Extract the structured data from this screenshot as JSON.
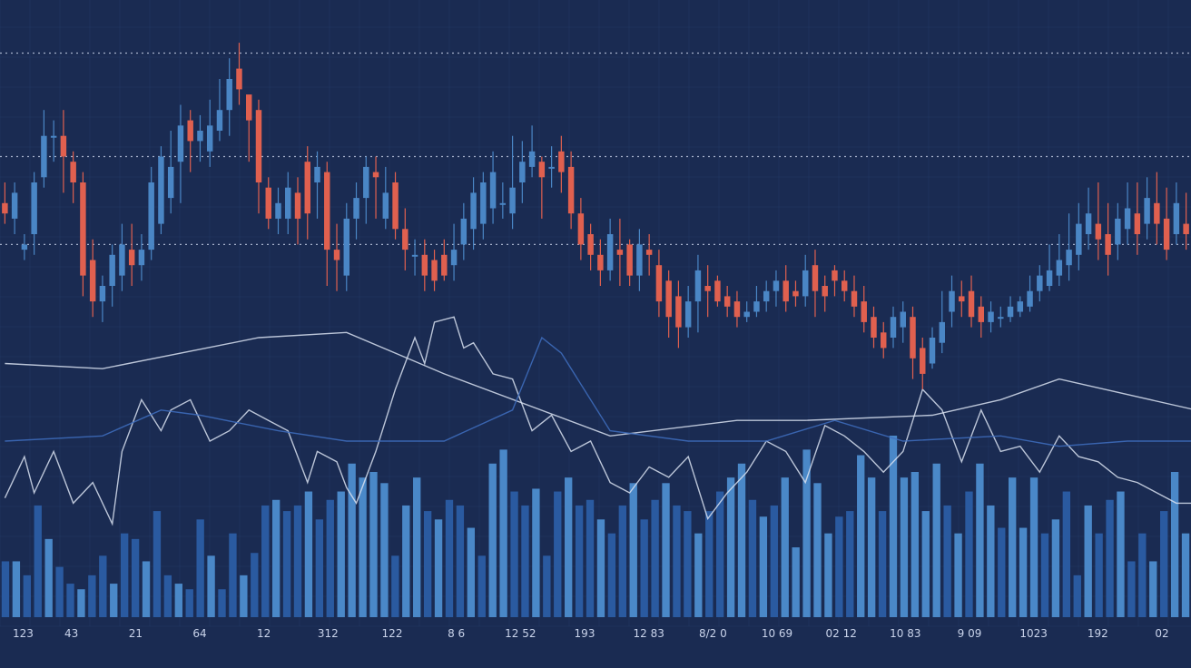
{
  "chart_data": {
    "type": "candlestick",
    "title": "",
    "xlabel": "",
    "ylabel": "",
    "grid": true,
    "legend": "none",
    "colors": {
      "background": "#1a2b52",
      "grid": "#26406e",
      "up": "#4a86c5",
      "down": "#e0604f",
      "volume": "#2a5aa0",
      "volume_light": "#4a88c8",
      "line_white": "#d8e0f0",
      "line_blue": "#3f6fc0"
    },
    "ylim": [
      0,
      100
    ],
    "x_ticks": [
      "123",
      "43",
      "21",
      "64",
      "12",
      "312",
      "122",
      "8 6",
      "12 52",
      "193",
      "12 83",
      "8/2 0",
      "10 69",
      "02 12",
      "10 83",
      "9 09",
      "1023",
      "192",
      "02"
    ],
    "reference_levels": [
      95,
      75,
      58
    ],
    "candles": [
      [
        66,
        64,
        70,
        62
      ],
      [
        63,
        68,
        70,
        60
      ],
      [
        57,
        58,
        60,
        55
      ],
      [
        60,
        70,
        72,
        56
      ],
      [
        71,
        79,
        84,
        69
      ],
      [
        79,
        79,
        82,
        74
      ],
      [
        79,
        75,
        84,
        68
      ],
      [
        74,
        70,
        76,
        66
      ],
      [
        70,
        52,
        72,
        48
      ],
      [
        55,
        47,
        59,
        44
      ],
      [
        47,
        50,
        52,
        43
      ],
      [
        50,
        56,
        58,
        46
      ],
      [
        52,
        58,
        62,
        49
      ],
      [
        57,
        54,
        62,
        50
      ],
      [
        54,
        57,
        60,
        51
      ],
      [
        57,
        70,
        73,
        55
      ],
      [
        62,
        75,
        77,
        60
      ],
      [
        67,
        73,
        80,
        64
      ],
      [
        74,
        81,
        85,
        66
      ],
      [
        82,
        78,
        84,
        72
      ],
      [
        78,
        80,
        83,
        74
      ],
      [
        76,
        81,
        86,
        73
      ],
      [
        80,
        84,
        90,
        78
      ],
      [
        84,
        90,
        94,
        79
      ],
      [
        92,
        88,
        97,
        85
      ],
      [
        87,
        82,
        85,
        74
      ],
      [
        84,
        70,
        86,
        64
      ],
      [
        69,
        63,
        71,
        61
      ],
      [
        63,
        66,
        69,
        60
      ],
      [
        63,
        69,
        72,
        60
      ],
      [
        68,
        63,
        71,
        58
      ],
      [
        74,
        64,
        77,
        59
      ],
      [
        70,
        73,
        76,
        63
      ],
      [
        72,
        57,
        74,
        50
      ],
      [
        57,
        55,
        62,
        49
      ],
      [
        52,
        63,
        66,
        49
      ],
      [
        63,
        67,
        70,
        59
      ],
      [
        67,
        73,
        75,
        62
      ],
      [
        72,
        71,
        75,
        63
      ],
      [
        63,
        68,
        73,
        61
      ],
      [
        70,
        61,
        72,
        59
      ],
      [
        61,
        57,
        65,
        53
      ],
      [
        56,
        56,
        59,
        52
      ],
      [
        56,
        52,
        59,
        49
      ],
      [
        55,
        51,
        57,
        49
      ],
      [
        56,
        52,
        59,
        51
      ],
      [
        54,
        57,
        62,
        51
      ],
      [
        58,
        63,
        66,
        55
      ],
      [
        61,
        68,
        71,
        57
      ],
      [
        62,
        70,
        72,
        59
      ],
      [
        65,
        72,
        76,
        62
      ],
      [
        66,
        66,
        70,
        63
      ],
      [
        64,
        69,
        79,
        61
      ],
      [
        70,
        74,
        78,
        66
      ],
      [
        73,
        76,
        81,
        71
      ],
      [
        74,
        71,
        75,
        63
      ],
      [
        73,
        73,
        77,
        69
      ],
      [
        76,
        72,
        79,
        68
      ],
      [
        73,
        64,
        76,
        61
      ],
      [
        64,
        58,
        67,
        55
      ],
      [
        60,
        56,
        62,
        53
      ],
      [
        56,
        53,
        59,
        50
      ],
      [
        53,
        60,
        63,
        51
      ],
      [
        57,
        56,
        63,
        50
      ],
      [
        58,
        52,
        59,
        50
      ],
      [
        52,
        58,
        61,
        49
      ],
      [
        57,
        56,
        60,
        52
      ],
      [
        54,
        47,
        57,
        44
      ],
      [
        51,
        44,
        53,
        40
      ],
      [
        48,
        42,
        51,
        38
      ],
      [
        42,
        47,
        50,
        40
      ],
      [
        47,
        53,
        56,
        41
      ],
      [
        50,
        49,
        54,
        44
      ],
      [
        51,
        47,
        52,
        46
      ],
      [
        48,
        46,
        50,
        44
      ],
      [
        47,
        44,
        49,
        42
      ],
      [
        44,
        45,
        47,
        43
      ],
      [
        45,
        47,
        50,
        44
      ],
      [
        47,
        49,
        51,
        45
      ],
      [
        49,
        51,
        53,
        46
      ],
      [
        51,
        47,
        54,
        45
      ],
      [
        49,
        48,
        51,
        46
      ],
      [
        48,
        53,
        56,
        46
      ],
      [
        54,
        49,
        57,
        44
      ],
      [
        50,
        48,
        52,
        45
      ],
      [
        53,
        51,
        54,
        48
      ],
      [
        51,
        49,
        53,
        47
      ],
      [
        49,
        46,
        52,
        44
      ],
      [
        47,
        43,
        50,
        41
      ],
      [
        44,
        40,
        46,
        38
      ],
      [
        41,
        38,
        43,
        36
      ],
      [
        40,
        44,
        46,
        38
      ],
      [
        42,
        45,
        47,
        39
      ],
      [
        44,
        36,
        46,
        32
      ],
      [
        38,
        33,
        40,
        30
      ],
      [
        35,
        40,
        42,
        34
      ],
      [
        39,
        43,
        49,
        37
      ],
      [
        45,
        49,
        52,
        42
      ],
      [
        48,
        47,
        51,
        44
      ],
      [
        49,
        44,
        52,
        42
      ],
      [
        46,
        43,
        48,
        40
      ],
      [
        43,
        45,
        47,
        41
      ],
      [
        44,
        44,
        46,
        42
      ],
      [
        44,
        46,
        48,
        43
      ],
      [
        45,
        47,
        48,
        44
      ],
      [
        46,
        49,
        52,
        45
      ],
      [
        49,
        52,
        54,
        47
      ],
      [
        50,
        53,
        58,
        49
      ],
      [
        52,
        55,
        60,
        50
      ],
      [
        54,
        57,
        64,
        51
      ],
      [
        56,
        62,
        66,
        53
      ],
      [
        60,
        64,
        69,
        57
      ],
      [
        62,
        59,
        70,
        55
      ],
      [
        60,
        56,
        66,
        52
      ],
      [
        58,
        63,
        66,
        55
      ],
      [
        61,
        65,
        70,
        58
      ],
      [
        64,
        60,
        70,
        56
      ],
      [
        62,
        67,
        71,
        59
      ],
      [
        66,
        62,
        72,
        58
      ],
      [
        63,
        57,
        69,
        55
      ],
      [
        60,
        66,
        70,
        58
      ],
      [
        62,
        60,
        68,
        57
      ]
    ],
    "volume": [
      20,
      20,
      15,
      40,
      28,
      18,
      12,
      10,
      15,
      22,
      12,
      30,
      28,
      20,
      38,
      15,
      12,
      10,
      35,
      22,
      10,
      30,
      15,
      23,
      40,
      42,
      38,
      40,
      45,
      35,
      42,
      45,
      55,
      50,
      52,
      48,
      22,
      40,
      50,
      38,
      35,
      42,
      40,
      32,
      22,
      55,
      60,
      45,
      40,
      46,
      22,
      45,
      50,
      40,
      42,
      35,
      30,
      40,
      48,
      35,
      42,
      48,
      40,
      38,
      30,
      38,
      45,
      50,
      55,
      42,
      36,
      40,
      50,
      25,
      60,
      48,
      30,
      36,
      38,
      58,
      50,
      38,
      65,
      50,
      52,
      38,
      55,
      40,
      30,
      45,
      55,
      40,
      32,
      50,
      32,
      50,
      30,
      35,
      45,
      15,
      40,
      30,
      42,
      45,
      20,
      30,
      20,
      38,
      52,
      30
    ],
    "indicators": [
      {
        "kind": "moving-average-smooth",
        "color": "#d8e0f0",
        "x": [
          0,
          10,
          26,
          35,
          45,
          62,
          75,
          82,
          95,
          102,
          108,
          122
        ],
        "y": [
          35,
          34,
          40,
          41,
          33,
          21,
          24,
          24,
          25,
          28,
          32,
          26
        ]
      },
      {
        "kind": "oscillator",
        "color": "#d8e0f0",
        "x": [
          0,
          2,
          3,
          5,
          7,
          9,
          11,
          12,
          14,
          16,
          17,
          19,
          21,
          23,
          25,
          27,
          29,
          31,
          32,
          33,
          34,
          35,
          36,
          38,
          40,
          42,
          43,
          44,
          46,
          47,
          48,
          50,
          52,
          54,
          56,
          58,
          60,
          62,
          64,
          66,
          68,
          70,
          72,
          74,
          76,
          78,
          80,
          82,
          84,
          86,
          88,
          90,
          92,
          94,
          96,
          98,
          100,
          102,
          104,
          106,
          108,
          110,
          112,
          114,
          116,
          118,
          120,
          122
        ],
        "y": [
          9,
          17,
          10,
          18,
          8,
          12,
          4,
          18,
          28,
          22,
          26,
          28,
          20,
          22,
          26,
          24,
          22,
          12,
          18,
          17,
          16,
          11,
          8,
          18,
          30,
          40,
          35,
          43,
          44,
          38,
          39,
          33,
          32,
          22,
          25,
          18,
          20,
          12,
          10,
          15,
          13,
          17,
          5,
          10,
          14,
          20,
          18,
          12,
          23,
          21,
          18,
          14,
          18,
          30,
          26,
          16,
          26,
          18,
          19,
          14,
          21,
          17,
          16,
          13,
          12,
          10,
          8,
          8
        ]
      },
      {
        "kind": "signal",
        "color": "#3f6fc0",
        "x": [
          0,
          10,
          16,
          20,
          28,
          35,
          45,
          52,
          55,
          57,
          62,
          70,
          78,
          85,
          92,
          102,
          108,
          115,
          122
        ],
        "y": [
          20,
          21,
          26,
          25,
          22,
          20,
          20,
          26,
          40,
          37,
          22,
          20,
          20,
          24,
          20,
          21,
          19,
          20,
          20
        ]
      }
    ]
  }
}
